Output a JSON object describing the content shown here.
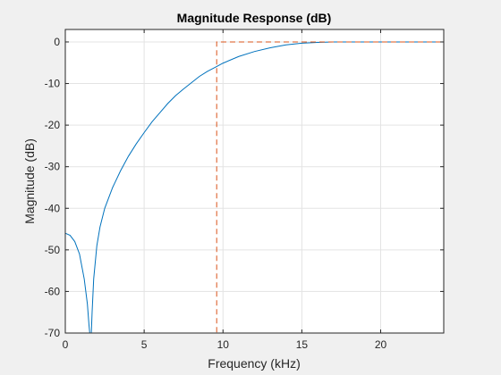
{
  "chart_data": {
    "type": "line",
    "title": "Magnitude Response (dB)",
    "xlabel": "Frequency (kHz)",
    "ylabel": "Magnitude (dB)",
    "xlim": [
      0,
      24
    ],
    "ylim": [
      -70,
      3
    ],
    "x_ticks": [
      0,
      5,
      10,
      15,
      20
    ],
    "x_tick_labels": [
      "0",
      "5",
      "10",
      "15",
      "20"
    ],
    "y_ticks": [
      0,
      -10,
      -20,
      -30,
      -40,
      -50,
      -60,
      -70
    ],
    "y_tick_labels": [
      "0",
      "-10",
      "-20",
      "-30",
      "-40",
      "-50",
      "-60",
      "-70"
    ],
    "grid": true,
    "legend": "none",
    "series": [
      {
        "style": "solid",
        "color": "#0072bd",
        "x": [
          0,
          0.3,
          0.6,
          0.9,
          1.2,
          1.4,
          1.5,
          1.55,
          1.6,
          1.65,
          1.7,
          1.8,
          2.0,
          2.2,
          2.5,
          3.0,
          3.5,
          4.0,
          4.5,
          5.0,
          5.5,
          6.0,
          6.5,
          7.0,
          7.5,
          8.0,
          8.5,
          9.0,
          9.5,
          10.0,
          11.0,
          12.0,
          13.0,
          14.0,
          15.0,
          16.0,
          17.0,
          18.0,
          20.0,
          22.0,
          24.0
        ],
        "y": [
          -46,
          -46.5,
          -48,
          -51,
          -57,
          -63,
          -68,
          -70,
          -70,
          -70,
          -65,
          -57,
          -49,
          -44.5,
          -40,
          -35,
          -31,
          -27.5,
          -24.5,
          -21.8,
          -19.2,
          -17,
          -14.8,
          -12.9,
          -11.3,
          -9.8,
          -8.3,
          -7.1,
          -6.1,
          -5.1,
          -3.5,
          -2.3,
          -1.4,
          -0.7,
          -0.3,
          -0.1,
          0,
          0,
          0,
          0,
          0
        ]
      },
      {
        "style": "dashed",
        "color": "#d95319",
        "x": [
          0,
          9.6,
          9.6,
          24
        ],
        "y": [
          -70,
          -70,
          0,
          0
        ]
      }
    ]
  }
}
